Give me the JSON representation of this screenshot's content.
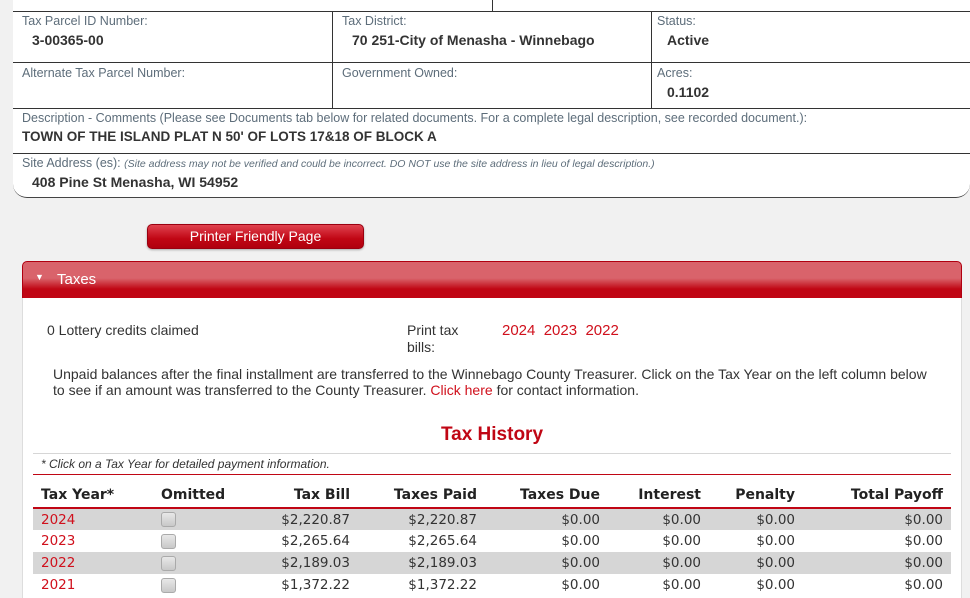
{
  "parcel": {
    "tax_parcel_id_label": "Tax Parcel ID Number:",
    "tax_parcel_id": "3-00365-00",
    "tax_district_label": "Tax District:",
    "tax_district": "70 251-City of Menasha - Winnebago",
    "status_label": "Status:",
    "status": "Active",
    "alt_parcel_label": "Alternate Tax Parcel Number:",
    "alt_parcel": "",
    "gov_owned_label": "Government Owned:",
    "gov_owned": "",
    "acres_label": "Acres:",
    "acres": "0.1102",
    "description_label": "Description - Comments (Please see Documents tab below for related documents. For a complete legal description, see recorded document.):",
    "description": "TOWN OF THE ISLAND PLAT N 50' OF LOTS 17&18 OF BLOCK A",
    "site_address_label": "Site Address (es):",
    "site_address_note": "(Site address may not be verified and could be incorrect. DO NOT use the site address in lieu of legal description.)",
    "site_address": "408 Pine St Menasha, WI 54952"
  },
  "printer_button": "Printer Friendly Page",
  "taxes": {
    "title": "Taxes",
    "lottery": "0 Lottery credits claimed",
    "print_label": "Print tax bills:",
    "print_years": [
      "2024",
      "2023",
      "2022"
    ],
    "notice_pre": "Unpaid balances after the final installment are transferred to the Winnebago County Treasurer. Click on the Tax Year on the left column below to see if an amount was transferred to the County Treasurer.",
    "notice_link": "Click here",
    "notice_post": "for contact information.",
    "history_title": "Tax History",
    "history_note": "* Click on a Tax Year for detailed payment information.",
    "columns": [
      "Tax Year*",
      "Omitted",
      "Tax Bill",
      "Taxes Paid",
      "Taxes Due",
      "Interest",
      "Penalty",
      "Total Payoff"
    ],
    "rows": [
      {
        "year": "2024",
        "omitted": false,
        "bill": "$2,220.87",
        "paid": "$2,220.87",
        "due": "$0.00",
        "interest": "$0.00",
        "penalty": "$0.00",
        "payoff": "$0.00"
      },
      {
        "year": "2023",
        "omitted": false,
        "bill": "$2,265.64",
        "paid": "$2,265.64",
        "due": "$0.00",
        "interest": "$0.00",
        "penalty": "$0.00",
        "payoff": "$0.00"
      },
      {
        "year": "2022",
        "omitted": false,
        "bill": "$2,189.03",
        "paid": "$2,189.03",
        "due": "$0.00",
        "interest": "$0.00",
        "penalty": "$0.00",
        "payoff": "$0.00"
      },
      {
        "year": "2021",
        "omitted": false,
        "bill": "$1,372.22",
        "paid": "$1,372.22",
        "due": "$0.00",
        "interest": "$0.00",
        "penalty": "$0.00",
        "payoff": "$0.00"
      }
    ]
  },
  "colors": {
    "accent": "#c00614",
    "link": "#d0101c"
  }
}
